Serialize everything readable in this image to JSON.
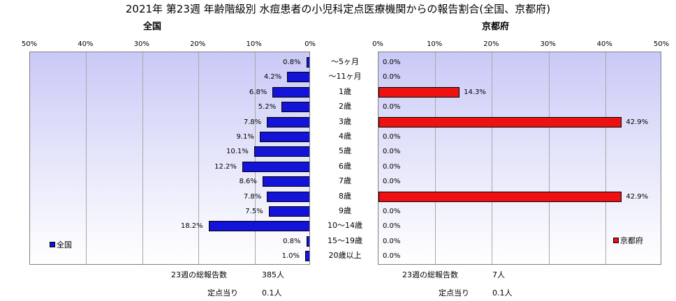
{
  "title": "2021年 第23週 年齢階級別 水痘患者の小児科定点医療機関からの報告割合(全国、京都府)",
  "colors": {
    "national": "#1414d8",
    "kyoto": "#ee1111"
  },
  "chart_data": [
    {
      "type": "bar",
      "orientation": "horizontal-reversed",
      "subtitle": "全国",
      "xlim": [
        0,
        50
      ],
      "ticks": [
        "50%",
        "40%",
        "30%",
        "20%",
        "10%",
        "0%"
      ],
      "categories": [
        "〜5ヶ月",
        "〜11ヶ月",
        "1歳",
        "2歳",
        "3歳",
        "4歳",
        "5歳",
        "6歳",
        "7歳",
        "8歳",
        "9歳",
        "10〜14歳",
        "15〜19歳",
        "20歳以上"
      ],
      "series": [
        {
          "name": "全国",
          "values": [
            0.8,
            4.2,
            6.8,
            5.2,
            7.8,
            9.1,
            10.1,
            12.2,
            8.6,
            7.8,
            7.5,
            18.2,
            0.8,
            1.0
          ],
          "labels": [
            "0.8%",
            "4.2%",
            "6.8%",
            "5.2%",
            "7.8%",
            "9.1%",
            "10.1%",
            "12.2%",
            "8.6%",
            "7.8%",
            "7.5%",
            "18.2%",
            "0.8%",
            "1.0%"
          ]
        }
      ],
      "legend": "bottom-left",
      "footer": {
        "reports_label": "23週の総報告数",
        "reports_value": "385人",
        "per_label": "定点当り",
        "per_value": "0.1人"
      }
    },
    {
      "type": "bar",
      "orientation": "horizontal",
      "subtitle": "京都府",
      "xlim": [
        0,
        50
      ],
      "ticks": [
        "0%",
        "10%",
        "20%",
        "30%",
        "40%",
        "50%"
      ],
      "categories": [
        "〜5ヶ月",
        "〜11ヶ月",
        "1歳",
        "2歳",
        "3歳",
        "4歳",
        "5歳",
        "6歳",
        "7歳",
        "8歳",
        "9歳",
        "10〜14歳",
        "15〜19歳",
        "20歳以上"
      ],
      "series": [
        {
          "name": "京都府",
          "values": [
            0.0,
            0.0,
            14.3,
            0.0,
            42.9,
            0.0,
            0.0,
            0.0,
            0.0,
            42.9,
            0.0,
            0.0,
            0.0,
            0.0
          ],
          "labels": [
            "0.0%",
            "0.0%",
            "14.3%",
            "0.0%",
            "42.9%",
            "0.0%",
            "0.0%",
            "0.0%",
            "0.0%",
            "42.9%",
            "0.0%",
            "0.0%",
            "0.0%",
            "0.0%"
          ]
        }
      ],
      "legend": "bottom-right",
      "footer": {
        "reports_label": "23週の総報告数",
        "reports_value": "7人",
        "per_label": "定点当り",
        "per_value": "0.1人"
      }
    }
  ]
}
